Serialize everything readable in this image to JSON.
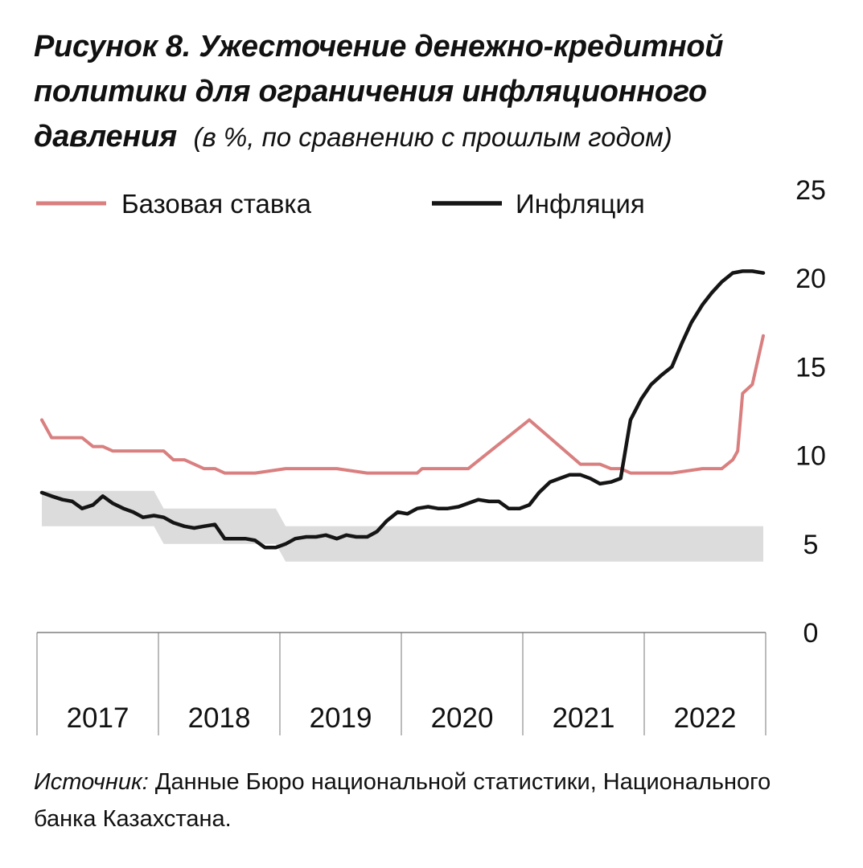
{
  "figure": {
    "title": "Рисунок 8.  Ужесточение денежно-кредитной политики для ограничения инфляционного давления",
    "note": "(в %, по сравнению с прошлым годом)",
    "source_label": "Источник:",
    "source_text": "Данные Бюро национальной статистики, Национального банка Казахстана."
  },
  "chart_data": {
    "type": "line",
    "y_ticks": [
      "0",
      "5",
      "10",
      "15",
      "20",
      "25"
    ],
    "ylim": [
      0,
      25
    ],
    "x_categories": [
      "2017",
      "2018",
      "2019",
      "2020",
      "2021",
      "2022"
    ],
    "xlim": [
      2017,
      2022.9
    ],
    "legend_position": "top-left",
    "grid": false,
    "series": [
      {
        "name": "Базовая ставка",
        "color": "#d97f7f",
        "x": [
          2017.0,
          2017.08,
          2017.17,
          2017.33,
          2017.42,
          2017.5,
          2017.58,
          2017.75,
          2017.92,
          2018.0,
          2018.08,
          2018.17,
          2018.25,
          2018.33,
          2018.42,
          2018.5,
          2018.67,
          2018.75,
          2019.0,
          2019.17,
          2019.25,
          2019.42,
          2019.67,
          2019.75,
          2020.0,
          2020.08,
          2020.12,
          2020.17,
          2020.25,
          2020.42,
          2020.5,
          2021.0,
          2021.42,
          2021.5,
          2021.58,
          2021.67,
          2021.75,
          2021.83,
          2021.92,
          2021.96,
          2022.0,
          2022.08,
          2022.17,
          2022.42,
          2022.58,
          2022.67,
          2022.71,
          2022.75,
          2022.83,
          2022.92
        ],
        "y": [
          12.0,
          11.0,
          11.0,
          11.0,
          10.5,
          10.5,
          10.25,
          10.25,
          10.25,
          10.25,
          9.75,
          9.75,
          9.5,
          9.25,
          9.25,
          9.0,
          9.0,
          9.0,
          9.25,
          9.25,
          9.25,
          9.25,
          9.0,
          9.0,
          9.0,
          9.0,
          9.25,
          9.25,
          9.25,
          9.25,
          9.25,
          12.0,
          9.5,
          9.5,
          9.5,
          9.25,
          9.25,
          9.0,
          9.0,
          9.0,
          9.0,
          9.0,
          9.0,
          9.25,
          9.25,
          9.75,
          10.25,
          13.5,
          14.0,
          16.75
        ],
        "x_": "placeholder"
      },
      {
        "name": "Инфляция",
        "color": "#151515",
        "x": [
          2017.0,
          2017.08,
          2017.17,
          2017.25,
          2017.33,
          2017.42,
          2017.5,
          2017.58,
          2017.67,
          2017.75,
          2017.83,
          2017.92,
          2018.0,
          2018.08,
          2018.17,
          2018.25,
          2018.33,
          2018.42,
          2018.5,
          2018.58,
          2018.67,
          2018.75,
          2018.83,
          2018.92,
          2019.0,
          2019.08,
          2019.17,
          2019.25,
          2019.33,
          2019.42,
          2019.5,
          2019.58,
          2019.67,
          2019.75,
          2019.83,
          2019.92,
          2020.0,
          2020.08,
          2020.17,
          2020.25,
          2020.33,
          2020.42,
          2020.5,
          2020.58,
          2020.67,
          2020.75,
          2020.83,
          2020.92,
          2021.0,
          2021.08,
          2021.17,
          2021.25,
          2021.33,
          2021.42,
          2021.5,
          2021.58,
          2021.67,
          2021.75,
          2021.83,
          2021.92,
          2022.0,
          2022.08,
          2022.17,
          2022.25,
          2022.33,
          2022.42,
          2022.5,
          2022.58,
          2022.67,
          2022.75,
          2022.83,
          2022.92
        ],
        "y": [
          7.9,
          7.7,
          7.5,
          7.4,
          7.0,
          7.2,
          7.7,
          7.3,
          7.0,
          6.8,
          6.5,
          6.6,
          6.5,
          6.2,
          6.0,
          5.9,
          6.0,
          6.1,
          5.3,
          5.3,
          5.3,
          5.2,
          4.8,
          4.8,
          5.0,
          5.3,
          5.4,
          5.4,
          5.5,
          5.3,
          5.5,
          5.4,
          5.4,
          5.7,
          6.3,
          6.8,
          6.7,
          7.0,
          7.1,
          7.0,
          7.0,
          7.1,
          7.3,
          7.5,
          7.4,
          7.4,
          7.0,
          7.0,
          7.2,
          7.9,
          8.5,
          8.7,
          8.9,
          8.9,
          8.7,
          8.4,
          8.5,
          8.7,
          12.0,
          13.2,
          14.0,
          14.5,
          15.0,
          16.3,
          17.5,
          18.5,
          19.2,
          19.8,
          20.3,
          20.4,
          20.4,
          20.3
        ],
        "x_": "placeholder"
      }
    ],
    "target_band": {
      "color": "#dcdcdc",
      "x": [
        2017.0,
        2017.92,
        2018.0,
        2018.92,
        2019.0,
        2022.92
      ],
      "lower": [
        6.0,
        6.0,
        5.0,
        5.0,
        4.0,
        4.0
      ],
      "upper": [
        8.0,
        8.0,
        7.0,
        7.0,
        6.0,
        6.0
      ]
    }
  }
}
